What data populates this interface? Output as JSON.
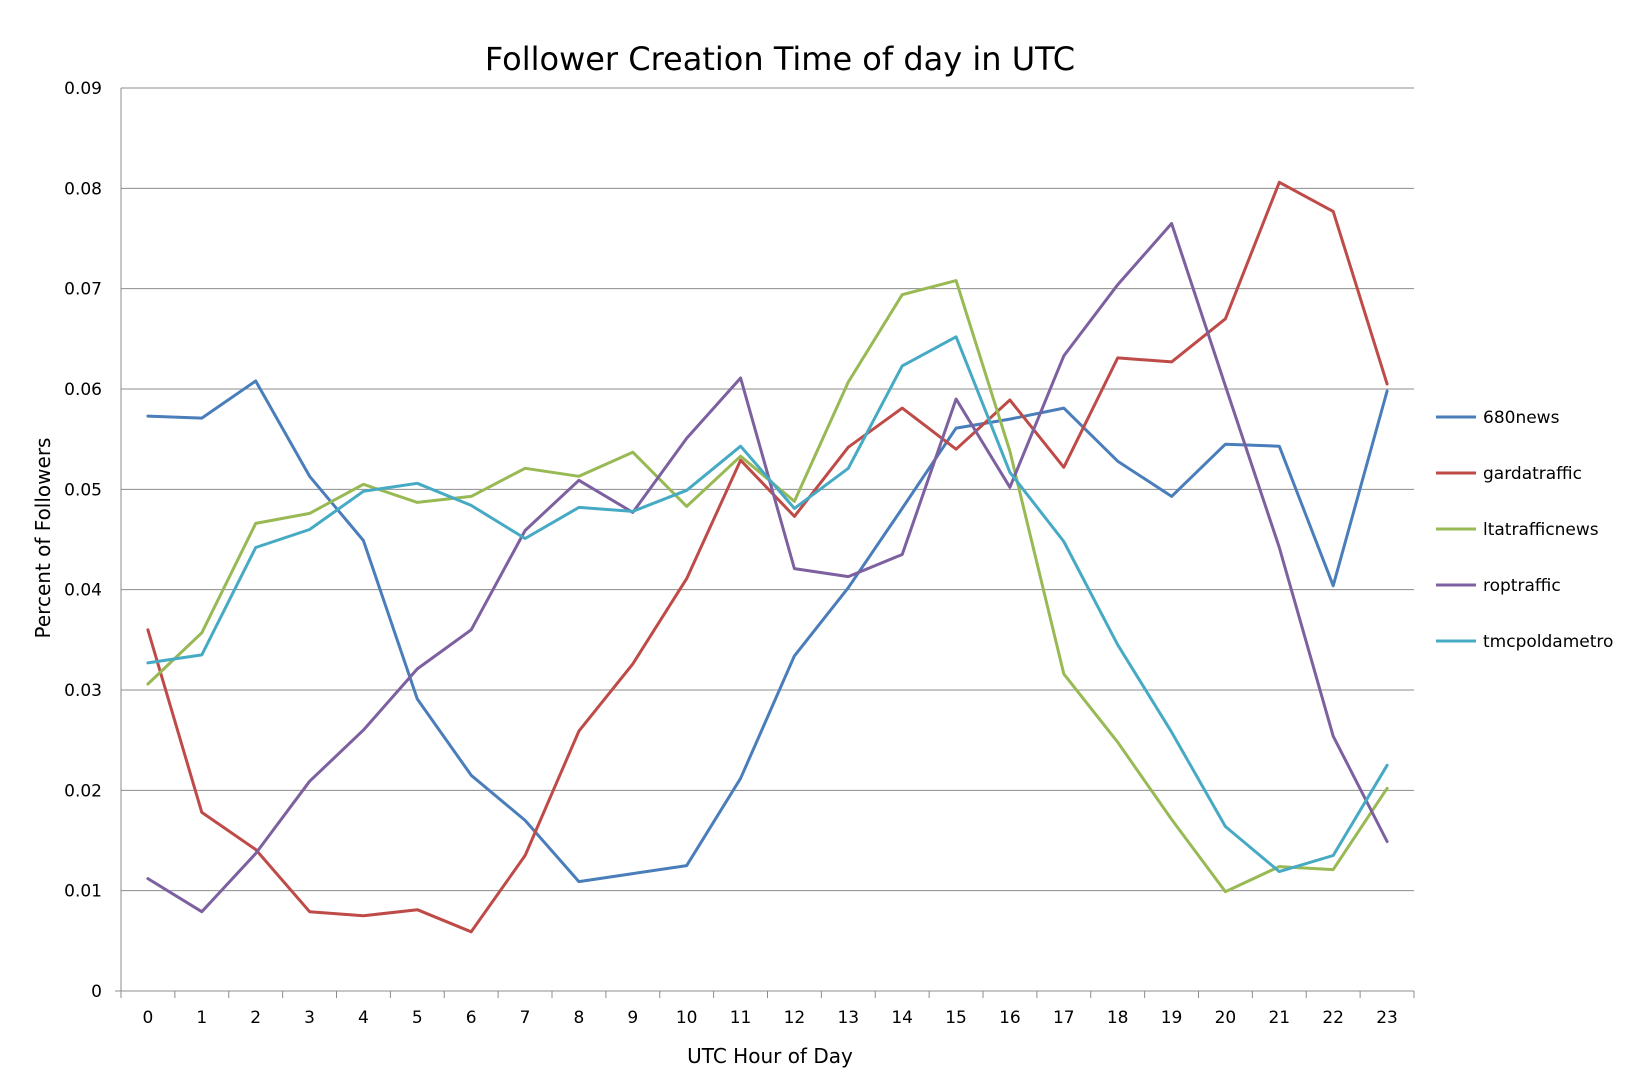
{
  "chart_data": {
    "type": "line",
    "title": "Follower Creation Time of day in UTC",
    "xlabel": "UTC Hour of Day",
    "ylabel": "Percent of Followers",
    "x": [
      0,
      1,
      2,
      3,
      4,
      5,
      6,
      7,
      8,
      9,
      10,
      11,
      12,
      13,
      14,
      15,
      16,
      17,
      18,
      19,
      20,
      21,
      22,
      23
    ],
    "ylim": [
      0,
      0.09
    ],
    "yticks": [
      0,
      0.01,
      0.02,
      0.03,
      0.04,
      0.05,
      0.06,
      0.07,
      0.08,
      0.09
    ],
    "ytick_labels": [
      "0",
      "0.01",
      "0.02",
      "0.03",
      "0.04",
      "0.05",
      "0.06",
      "0.07",
      "0.08",
      "0.09"
    ],
    "grid": true,
    "legend_position": "right",
    "series": [
      {
        "name": "680news",
        "color": "#4a7ebb",
        "values": [
          0.0573,
          0.0571,
          0.0608,
          0.0513,
          0.0449,
          0.0291,
          0.0215,
          0.017,
          0.0109,
          0.0117,
          0.0125,
          0.0212,
          0.0334,
          0.0402,
          0.0481,
          0.0561,
          0.057,
          0.0581,
          0.0528,
          0.0493,
          0.0545,
          0.0543,
          0.0404,
          0.0598
        ]
      },
      {
        "name": "gardatraffic",
        "color": "#be4b48",
        "values": [
          0.036,
          0.0178,
          0.0141,
          0.0079,
          0.0075,
          0.0081,
          0.0059,
          0.0135,
          0.0259,
          0.0326,
          0.0411,
          0.0529,
          0.0473,
          0.0542,
          0.0581,
          0.054,
          0.0589,
          0.0522,
          0.0631,
          0.0627,
          0.067,
          0.0806,
          0.0777,
          0.0605
        ]
      },
      {
        "name": "ltatrafficnews",
        "color": "#98b954",
        "values": [
          0.0306,
          0.0357,
          0.0466,
          0.0476,
          0.0505,
          0.0487,
          0.0493,
          0.0521,
          0.0513,
          0.0537,
          0.0483,
          0.0533,
          0.0488,
          0.0607,
          0.0694,
          0.0708,
          0.0538,
          0.0316,
          0.0248,
          0.0171,
          0.0099,
          0.0124,
          0.0121,
          0.0202
        ]
      },
      {
        "name": "roptraffic",
        "color": "#7d60a0",
        "values": [
          0.0112,
          0.0079,
          0.0137,
          0.0209,
          0.026,
          0.0321,
          0.036,
          0.0459,
          0.0509,
          0.0477,
          0.0551,
          0.0611,
          0.0421,
          0.0413,
          0.0435,
          0.059,
          0.0502,
          0.0633,
          0.0704,
          0.0765,
          0.0603,
          0.0442,
          0.0254,
          0.0149
        ]
      },
      {
        "name": "tmcpoldametro",
        "color": "#46aac5",
        "values": [
          0.0327,
          0.0335,
          0.0442,
          0.046,
          0.0498,
          0.0506,
          0.0484,
          0.0451,
          0.0482,
          0.0478,
          0.0499,
          0.0543,
          0.0481,
          0.0521,
          0.0623,
          0.0652,
          0.0517,
          0.0448,
          0.0345,
          0.0258,
          0.0164,
          0.0119,
          0.0135,
          0.0225
        ]
      }
    ]
  }
}
